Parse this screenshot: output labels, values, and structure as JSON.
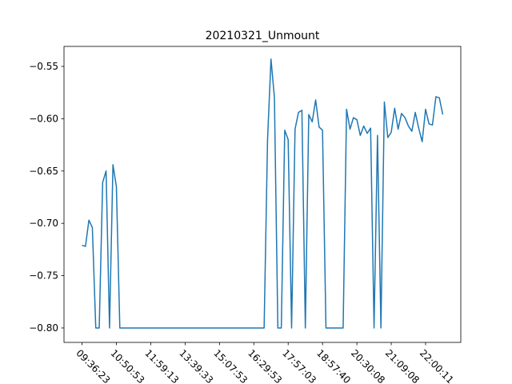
{
  "chart_data": {
    "type": "line",
    "title": "20210321_Unmount",
    "categories": [
      "09:36:23",
      null,
      null,
      null,
      null,
      null,
      null,
      null,
      null,
      null,
      "10:50:53",
      null,
      null,
      null,
      null,
      null,
      null,
      null,
      null,
      null,
      "11:59:13",
      null,
      null,
      null,
      null,
      null,
      null,
      null,
      null,
      null,
      "13:39:33",
      null,
      null,
      null,
      null,
      null,
      null,
      null,
      null,
      null,
      "15:07:53",
      null,
      null,
      null,
      null,
      null,
      null,
      null,
      null,
      null,
      "16:29:53",
      null,
      null,
      null,
      null,
      null,
      null,
      null,
      null,
      null,
      "17:57:03",
      null,
      null,
      null,
      null,
      null,
      null,
      null,
      null,
      null,
      "18:57:40",
      null,
      null,
      null,
      null,
      null,
      null,
      null,
      null,
      null,
      "20:30:08",
      null,
      null,
      null,
      null,
      null,
      null,
      null,
      null,
      null,
      "21:09:08",
      null,
      null,
      null,
      null,
      null,
      null,
      null,
      null,
      null,
      "22:00:11",
      null,
      null,
      null,
      null,
      null
    ],
    "series": [
      {
        "color": "#1f77b4",
        "values": [
          -0.721,
          -0.722,
          -0.697,
          -0.704,
          -0.8,
          -0.8,
          -0.661,
          -0.65,
          -0.8,
          -0.644,
          -0.665,
          -0.8,
          -0.8,
          -0.8,
          -0.8,
          -0.8,
          -0.8,
          -0.8,
          -0.8,
          -0.8,
          -0.8,
          -0.8,
          -0.8,
          -0.8,
          -0.8,
          -0.8,
          -0.8,
          -0.8,
          -0.8,
          -0.8,
          -0.8,
          -0.8,
          -0.8,
          -0.8,
          -0.8,
          -0.8,
          -0.8,
          -0.8,
          -0.8,
          -0.8,
          -0.8,
          -0.8,
          -0.8,
          -0.8,
          -0.8,
          -0.8,
          -0.8,
          -0.8,
          -0.8,
          -0.8,
          -0.8,
          -0.8,
          -0.8,
          -0.8,
          -0.62,
          -0.543,
          -0.58,
          -0.8,
          -0.8,
          -0.611,
          -0.62,
          -0.8,
          -0.61,
          -0.594,
          -0.592,
          -0.8,
          -0.596,
          -0.603,
          -0.582,
          -0.608,
          -0.611,
          -0.8,
          -0.8,
          -0.8,
          -0.8,
          -0.8,
          -0.8,
          -0.591,
          -0.61,
          -0.599,
          -0.601,
          -0.616,
          -0.607,
          -0.614,
          -0.609,
          -0.8,
          -0.616,
          -0.8,
          -0.584,
          -0.618,
          -0.613,
          -0.59,
          -0.61,
          -0.595,
          -0.599,
          -0.607,
          -0.612,
          -0.594,
          -0.609,
          -0.622,
          -0.591,
          -0.605,
          -0.606,
          -0.579,
          -0.58,
          -0.596
        ]
      }
    ],
    "ylim": [
      -0.8138,
      -0.5309
    ],
    "yticks": [
      {
        "value": -0.8,
        "label": "−0.80"
      },
      {
        "value": -0.75,
        "label": "−0.75"
      },
      {
        "value": -0.7,
        "label": "−0.70"
      },
      {
        "value": -0.65,
        "label": "−0.65"
      },
      {
        "value": -0.6,
        "label": "−0.60"
      },
      {
        "value": -0.55,
        "label": "−0.55"
      }
    ]
  }
}
